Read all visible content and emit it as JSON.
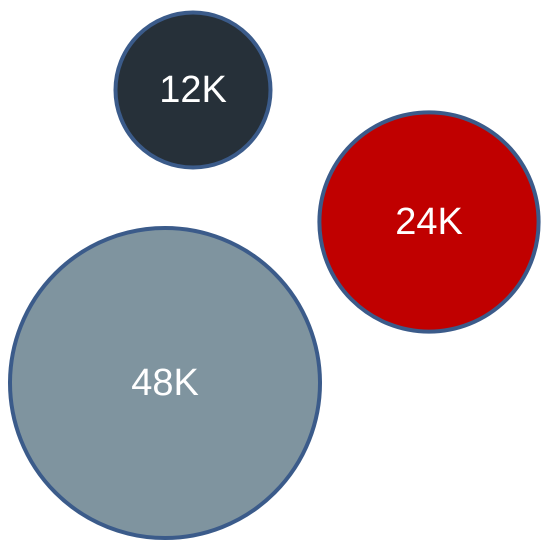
{
  "chart_data": {
    "type": "bubble",
    "series": [
      {
        "points": [
          {
            "label": "12K",
            "value": 12000,
            "color": "#263039"
          },
          {
            "label": "24K",
            "value": 24000,
            "color": "#C00000"
          },
          {
            "label": "48K",
            "value": 48000,
            "color": "#7F949F"
          }
        ]
      }
    ],
    "legend": "none",
    "grid": false,
    "outline_color": "#3B5B8A"
  }
}
